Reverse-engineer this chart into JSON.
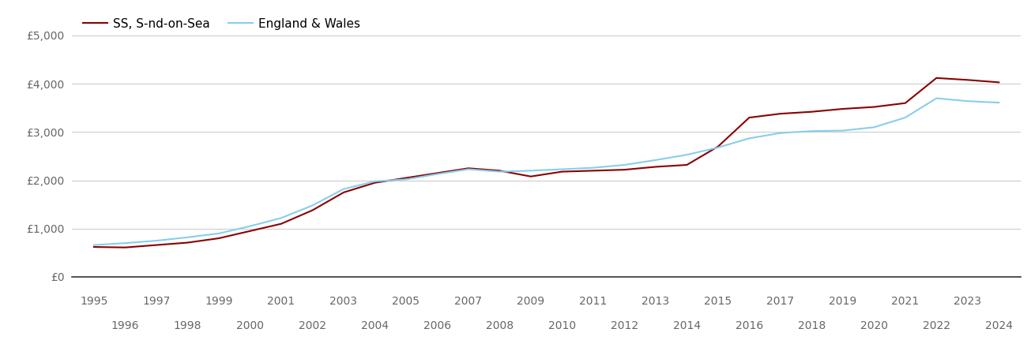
{
  "ss_years": [
    1995,
    1996,
    1997,
    1998,
    1999,
    2000,
    2001,
    2002,
    2003,
    2004,
    2005,
    2006,
    2007,
    2008,
    2009,
    2010,
    2011,
    2012,
    2013,
    2014,
    2015,
    2016,
    2017,
    2018,
    2019,
    2020,
    2021,
    2022,
    2023,
    2024
  ],
  "ss_values": [
    620,
    610,
    660,
    710,
    800,
    950,
    1100,
    1380,
    1750,
    1950,
    2050,
    2150,
    2250,
    2200,
    2080,
    2180,
    2200,
    2220,
    2280,
    2320,
    2700,
    3300,
    3380,
    3420,
    3480,
    3520,
    3600,
    4120,
    4080,
    4030
  ],
  "ew_years": [
    1995,
    1996,
    1997,
    1998,
    1999,
    2000,
    2001,
    2002,
    2003,
    2004,
    2005,
    2006,
    2007,
    2008,
    2009,
    2010,
    2011,
    2012,
    2013,
    2014,
    2015,
    2016,
    2017,
    2018,
    2019,
    2020,
    2021,
    2022,
    2023,
    2024
  ],
  "ew_values": [
    660,
    700,
    750,
    820,
    900,
    1050,
    1220,
    1480,
    1820,
    1980,
    2020,
    2130,
    2230,
    2180,
    2200,
    2230,
    2260,
    2320,
    2420,
    2530,
    2680,
    2870,
    2980,
    3020,
    3030,
    3100,
    3300,
    3700,
    3640,
    3610
  ],
  "ss_color": "#8b0000",
  "ew_color": "#87ceeb",
  "ss_label": "SS, S-nd-on-Sea",
  "ew_label": "England & Wales",
  "ylim": [
    0,
    5000
  ],
  "yticks": [
    0,
    1000,
    2000,
    3000,
    4000,
    5000
  ],
  "ytick_labels": [
    "£0",
    "£1,000",
    "£2,000",
    "£3,000",
    "£4,000",
    "£5,000"
  ],
  "background_color": "#ffffff",
  "grid_color": "#cccccc",
  "line_width": 1.5,
  "legend_fontsize": 11,
  "tick_fontsize": 10,
  "xticks_odd": [
    1995,
    1997,
    1999,
    2001,
    2003,
    2005,
    2007,
    2009,
    2011,
    2013,
    2015,
    2017,
    2019,
    2021,
    2023
  ],
  "xticks_even": [
    1996,
    1998,
    2000,
    2002,
    2004,
    2006,
    2008,
    2010,
    2012,
    2014,
    2016,
    2018,
    2020,
    2022,
    2024
  ]
}
